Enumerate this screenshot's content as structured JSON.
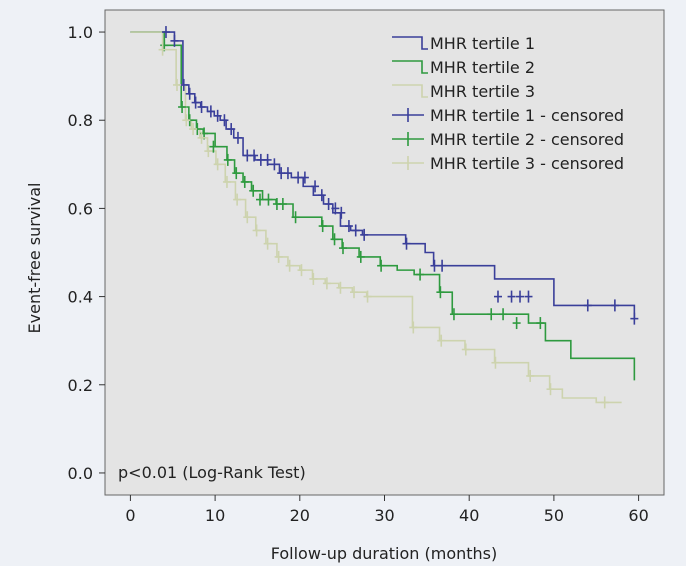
{
  "chart_data": {
    "type": "line",
    "step": true,
    "xlabel": "Follow-up duration (months)",
    "ylabel": "Event-free survival",
    "xlim": [
      -3,
      63
    ],
    "ylim": [
      -0.05,
      1.05
    ],
    "xticks": [
      0,
      10,
      20,
      30,
      40,
      50,
      60
    ],
    "yticks": [
      0.0,
      0.2,
      0.4,
      0.6,
      0.8,
      1.0
    ],
    "xtick_labels": [
      "0",
      "10",
      "20",
      "30",
      "40",
      "50",
      "60"
    ],
    "ytick_labels": [
      "0.0",
      "0.2",
      "0.4",
      "0.6",
      "0.8",
      "1.0"
    ],
    "annotation": "p<0.01 (Log-Rank Test)",
    "legend_position": "top-right",
    "grid": false,
    "plot_background": "#e4e4e4",
    "series": [
      {
        "name": "MHR tertile 1",
        "censored_name": "MHR tertile 1 - censored",
        "color": "#3a3f9a",
        "x": [
          0,
          4.2,
          5.2,
          6.2,
          6.9,
          7.6,
          8.3,
          9.1,
          9.9,
          10.6,
          11.3,
          12.2,
          13.3,
          14.7,
          16.2,
          17.6,
          19.0,
          20.4,
          21.6,
          22.8,
          23.9,
          24.8,
          26.0,
          27.4,
          32.5,
          34.8,
          35.8,
          43.0,
          50.0,
          59.5
        ],
        "y": [
          1.0,
          1.0,
          0.98,
          0.88,
          0.86,
          0.84,
          0.83,
          0.82,
          0.81,
          0.8,
          0.78,
          0.76,
          0.72,
          0.71,
          0.7,
          0.68,
          0.67,
          0.65,
          0.63,
          0.61,
          0.59,
          0.56,
          0.55,
          0.54,
          0.52,
          0.5,
          0.47,
          0.44,
          0.38,
          0.35
        ],
        "censor_x": [
          4.2,
          5.2,
          6.3,
          7.0,
          7.7,
          8.4,
          9.5,
          10.3,
          11.1,
          11.9,
          12.7,
          13.8,
          14.6,
          15.4,
          16.2,
          17.0,
          17.8,
          18.6,
          19.8,
          20.6,
          21.8,
          22.6,
          23.4,
          24.2,
          24.9,
          25.8,
          26.6,
          27.6,
          32.6,
          35.9,
          36.8,
          43.4,
          45.0,
          46.0,
          47.0,
          54.0,
          57.2,
          59.5
        ],
        "censor_y": [
          1.0,
          0.98,
          0.88,
          0.86,
          0.84,
          0.83,
          0.82,
          0.81,
          0.8,
          0.78,
          0.76,
          0.72,
          0.72,
          0.71,
          0.71,
          0.7,
          0.68,
          0.68,
          0.67,
          0.67,
          0.65,
          0.63,
          0.61,
          0.6,
          0.59,
          0.56,
          0.55,
          0.54,
          0.52,
          0.47,
          0.47,
          0.4,
          0.4,
          0.4,
          0.4,
          0.38,
          0.38,
          0.35
        ]
      },
      {
        "name": "MHR tertile 2",
        "censored_name": "MHR tertile 2 - censored",
        "color": "#2e9a3f",
        "x": [
          0,
          4.0,
          6.0,
          6.9,
          7.8,
          8.6,
          10.0,
          11.4,
          12.3,
          13.3,
          14.3,
          15.6,
          17.2,
          19.2,
          22.6,
          23.9,
          25.0,
          27.0,
          29.5,
          31.5,
          33.5,
          36.5,
          38.0,
          47.0,
          49.0,
          52.0,
          59.5
        ],
        "y": [
          1.0,
          0.97,
          0.83,
          0.8,
          0.78,
          0.77,
          0.74,
          0.71,
          0.68,
          0.66,
          0.64,
          0.62,
          0.61,
          0.58,
          0.56,
          0.53,
          0.51,
          0.49,
          0.47,
          0.46,
          0.45,
          0.41,
          0.36,
          0.34,
          0.3,
          0.26,
          0.21
        ],
        "censor_x": [
          4.0,
          6.1,
          7.0,
          7.9,
          8.7,
          9.8,
          11.5,
          12.5,
          13.5,
          14.5,
          15.3,
          16.3,
          17.3,
          18.0,
          19.5,
          22.7,
          24.1,
          25.1,
          27.2,
          29.6,
          34.2,
          36.6,
          38.2,
          42.6,
          44.0,
          45.6,
          48.4
        ],
        "censor_y": [
          0.97,
          0.83,
          0.8,
          0.78,
          0.77,
          0.74,
          0.71,
          0.68,
          0.66,
          0.64,
          0.62,
          0.62,
          0.61,
          0.61,
          0.58,
          0.56,
          0.53,
          0.51,
          0.49,
          0.47,
          0.45,
          0.41,
          0.36,
          0.36,
          0.36,
          0.34,
          0.34
        ]
      },
      {
        "name": "MHR tertile 3",
        "censored_name": "MHR tertile 3 - censored",
        "color": "#cdd3ae",
        "x": [
          0,
          3.8,
          5.4,
          6.5,
          7.2,
          8.2,
          9.1,
          10.1,
          11.2,
          12.4,
          13.6,
          14.8,
          16.0,
          17.3,
          18.6,
          20.0,
          21.5,
          23.0,
          24.6,
          26.2,
          27.9,
          29.7,
          31.6,
          33.3,
          36.5,
          39.5,
          43.0,
          47.0,
          49.5,
          51.0,
          55.0,
          58.0
        ],
        "y": [
          1.0,
          0.96,
          0.88,
          0.8,
          0.78,
          0.76,
          0.73,
          0.7,
          0.66,
          0.62,
          0.58,
          0.55,
          0.52,
          0.49,
          0.47,
          0.46,
          0.44,
          0.43,
          0.42,
          0.41,
          0.4,
          0.4,
          0.4,
          0.33,
          0.3,
          0.28,
          0.25,
          0.22,
          0.19,
          0.17,
          0.16,
          0.16
        ],
        "censor_x": [
          3.8,
          5.5,
          6.6,
          7.4,
          8.4,
          9.2,
          10.3,
          11.4,
          12.6,
          13.8,
          14.9,
          16.2,
          17.5,
          18.8,
          20.2,
          21.6,
          23.2,
          24.8,
          26.4,
          28.0,
          33.4,
          36.7,
          39.6,
          43.1,
          47.2,
          49.6,
          56.0
        ],
        "censor_y": [
          0.96,
          0.88,
          0.8,
          0.78,
          0.76,
          0.73,
          0.7,
          0.66,
          0.62,
          0.58,
          0.55,
          0.52,
          0.49,
          0.47,
          0.46,
          0.44,
          0.43,
          0.42,
          0.41,
          0.4,
          0.33,
          0.3,
          0.28,
          0.25,
          0.22,
          0.19,
          0.16
        ]
      }
    ]
  }
}
